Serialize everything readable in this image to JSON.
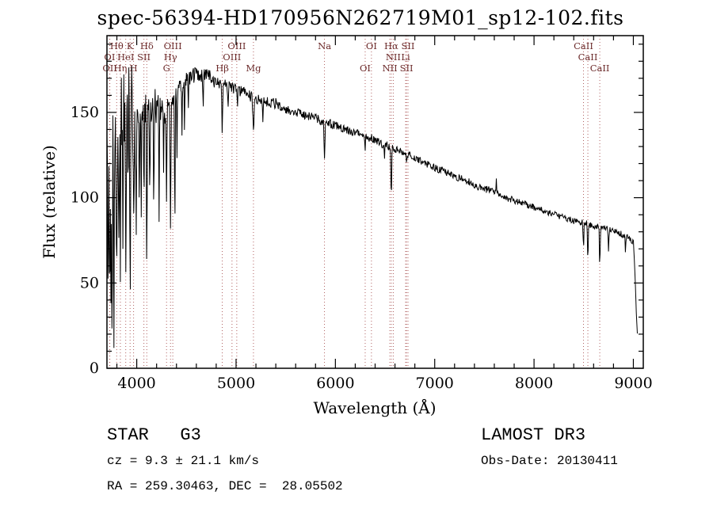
{
  "title": "spec-56394-HD170956N262719M01_sp12-102.fits",
  "axes": {
    "xlabel": "Wavelength (Å)",
    "ylabel": "Flux (relative)"
  },
  "footer": {
    "classification": "STAR   G3",
    "survey": "LAMOST DR3",
    "cz": "cz = 9.3 ± 21.1 km/s",
    "obs_date": "Obs-Date: 20130411",
    "coords": "RA = 259.30463, DEC =  28.05502"
  },
  "colors": {
    "marker_line": "#b06060",
    "marker_label": "#6b2a2a",
    "spectrum": "#000000",
    "frame": "#000000"
  },
  "chart_data": {
    "type": "line",
    "title": "spec-56394-HD170956N262719M01_sp12-102.fits",
    "xlabel": "Wavelength (Å)",
    "ylabel": "Flux (relative)",
    "xlim": [
      3700,
      9100
    ],
    "ylim": [
      0,
      195
    ],
    "x_ticks": [
      4000,
      5000,
      6000,
      7000,
      8000,
      9000
    ],
    "y_ticks": [
      0,
      50,
      100,
      150
    ],
    "x_minor_step": 200,
    "y_minor_step": 10,
    "grid": false,
    "legend": "none",
    "sample_step": 5,
    "x_start": 3700,
    "x_end": 9040,
    "noise_seed": 20130411,
    "envelope": [
      [
        3700,
        128
      ],
      [
        3730,
        138
      ],
      [
        3760,
        144
      ],
      [
        3800,
        148
      ],
      [
        3850,
        150
      ],
      [
        3900,
        151
      ],
      [
        3950,
        150
      ],
      [
        4000,
        151
      ],
      [
        4060,
        150
      ],
      [
        4120,
        151
      ],
      [
        4180,
        153
      ],
      [
        4240,
        152
      ],
      [
        4300,
        154
      ],
      [
        4360,
        158
      ],
      [
        4420,
        164
      ],
      [
        4480,
        168
      ],
      [
        4540,
        171
      ],
      [
        4600,
        172
      ],
      [
        4660,
        172
      ],
      [
        4720,
        171
      ],
      [
        4780,
        169
      ],
      [
        4840,
        167
      ],
      [
        4900,
        166
      ],
      [
        4960,
        164
      ],
      [
        5020,
        163
      ],
      [
        5080,
        162
      ],
      [
        5160,
        159
      ],
      [
        5240,
        157
      ],
      [
        5320,
        156
      ],
      [
        5420,
        155
      ],
      [
        5520,
        152
      ],
      [
        5620,
        150
      ],
      [
        5720,
        148
      ],
      [
        5820,
        146
      ],
      [
        5920,
        144
      ],
      [
        6020,
        142
      ],
      [
        6120,
        140
      ],
      [
        6220,
        138
      ],
      [
        6320,
        136
      ],
      [
        6420,
        133
      ],
      [
        6520,
        130
      ],
      [
        6620,
        128
      ],
      [
        6720,
        126
      ],
      [
        6820,
        123
      ],
      [
        6920,
        120
      ],
      [
        7020,
        117
      ],
      [
        7120,
        115
      ],
      [
        7220,
        112
      ],
      [
        7320,
        110
      ],
      [
        7420,
        107
      ],
      [
        7520,
        105
      ],
      [
        7620,
        103
      ],
      [
        7720,
        100
      ],
      [
        7820,
        98
      ],
      [
        7920,
        96
      ],
      [
        8020,
        94
      ],
      [
        8120,
        92
      ],
      [
        8220,
        90
      ],
      [
        8320,
        88
      ],
      [
        8420,
        86
      ],
      [
        8520,
        85
      ],
      [
        8620,
        83
      ],
      [
        8720,
        82
      ],
      [
        8820,
        80
      ],
      [
        8900,
        78
      ],
      [
        8960,
        76
      ],
      [
        9000,
        74
      ],
      [
        9012,
        62
      ],
      [
        9024,
        42
      ],
      [
        9040,
        20
      ]
    ],
    "noise_segments": [
      [
        3690,
        4000,
        34
      ],
      [
        4000,
        4300,
        11
      ],
      [
        4300,
        4800,
        4.5
      ],
      [
        4800,
        5600,
        3.2
      ],
      [
        5600,
        6600,
        2.6
      ],
      [
        6600,
        7600,
        2.2
      ],
      [
        7600,
        9050,
        1.9
      ]
    ],
    "absorption_lines": [
      [
        3712,
        85,
        5
      ],
      [
        3727,
        105,
        4
      ],
      [
        3740,
        70,
        4
      ],
      [
        3752,
        115,
        5
      ],
      [
        3771,
        125,
        5
      ],
      [
        3798,
        95,
        5
      ],
      [
        3820,
        78,
        4
      ],
      [
        3835,
        110,
        5
      ],
      [
        3860,
        72,
        4
      ],
      [
        3889,
        100,
        5
      ],
      [
        3910,
        58,
        4
      ],
      [
        3933,
        112,
        5
      ],
      [
        3968,
        98,
        5
      ],
      [
        3995,
        48,
        4
      ],
      [
        4026,
        62,
        4
      ],
      [
        4045,
        52,
        4
      ],
      [
        4072,
        58,
        4
      ],
      [
        4101,
        88,
        5
      ],
      [
        4132,
        48,
        4
      ],
      [
        4172,
        58,
        5
      ],
      [
        4226,
        62,
        4
      ],
      [
        4271,
        48,
        4
      ],
      [
        4300,
        52,
        5
      ],
      [
        4340,
        78,
        5
      ],
      [
        4383,
        85,
        4
      ],
      [
        4405,
        38,
        4
      ],
      [
        4455,
        32,
        4
      ],
      [
        4481,
        26,
        4
      ],
      [
        4520,
        20,
        4
      ],
      [
        4668,
        20,
        4
      ],
      [
        4861,
        32,
        5
      ],
      [
        4920,
        14,
        4
      ],
      [
        5015,
        8,
        4
      ],
      [
        5175,
        20,
        8
      ],
      [
        5270,
        12,
        5
      ],
      [
        5890,
        24,
        6
      ],
      [
        6300,
        8,
        4
      ],
      [
        6495,
        10,
        4
      ],
      [
        6563,
        30,
        5
      ],
      [
        6717,
        8,
        4
      ],
      [
        7620,
        -9,
        3
      ],
      [
        8498,
        15,
        5
      ],
      [
        8542,
        20,
        5
      ],
      [
        8662,
        22,
        5
      ],
      [
        8750,
        12,
        5
      ],
      [
        8920,
        10,
        4
      ]
    ],
    "spectral_markers": [
      {
        "label": "Hθ",
        "wl": 3798,
        "row": 1
      },
      {
        "label": "K",
        "wl": 3933,
        "row": 1
      },
      {
        "label": "Hδ",
        "wl": 4101,
        "row": 1
      },
      {
        "label": "OIII",
        "wl": 4363,
        "row": 1
      },
      {
        "label": "OIII",
        "wl": 5007,
        "row": 1
      },
      {
        "label": "Na",
        "wl": 5890,
        "row": 1
      },
      {
        "label": "OI",
        "wl": 6363,
        "row": 1
      },
      {
        "label": "Hα",
        "wl": 6563,
        "row": 1
      },
      {
        "label": "SII",
        "wl": 6731,
        "row": 1
      },
      {
        "label": "CaII",
        "wl": 8498,
        "row": 1
      },
      {
        "label": "OI",
        "wl": 3727,
        "row": 2
      },
      {
        "label": "HeI",
        "wl": 3889,
        "row": 2
      },
      {
        "label": "SII",
        "wl": 4072,
        "row": 2
      },
      {
        "label": "Hγ",
        "wl": 4340,
        "row": 2
      },
      {
        "label": "OIII",
        "wl": 4959,
        "row": 2
      },
      {
        "label": "NII",
        "wl": 6583,
        "row": 2
      },
      {
        "label": "Li",
        "wl": 6707,
        "row": 2
      },
      {
        "label": "CaII",
        "wl": 8542,
        "row": 2
      },
      {
        "label": "OII",
        "wl": 3729,
        "row": 3
      },
      {
        "label": "Hη",
        "wl": 3835,
        "row": 3
      },
      {
        "label": "H",
        "wl": 3968,
        "row": 3
      },
      {
        "label": "G",
        "wl": 4300,
        "row": 3
      },
      {
        "label": "Hβ",
        "wl": 4861,
        "row": 3
      },
      {
        "label": "Mg",
        "wl": 5175,
        "row": 3
      },
      {
        "label": "OI",
        "wl": 6300,
        "row": 3
      },
      {
        "label": "NII",
        "wl": 6548,
        "row": 3
      },
      {
        "label": "SII",
        "wl": 6716,
        "row": 3
      },
      {
        "label": "CaII",
        "wl": 8662,
        "row": 3
      }
    ]
  }
}
